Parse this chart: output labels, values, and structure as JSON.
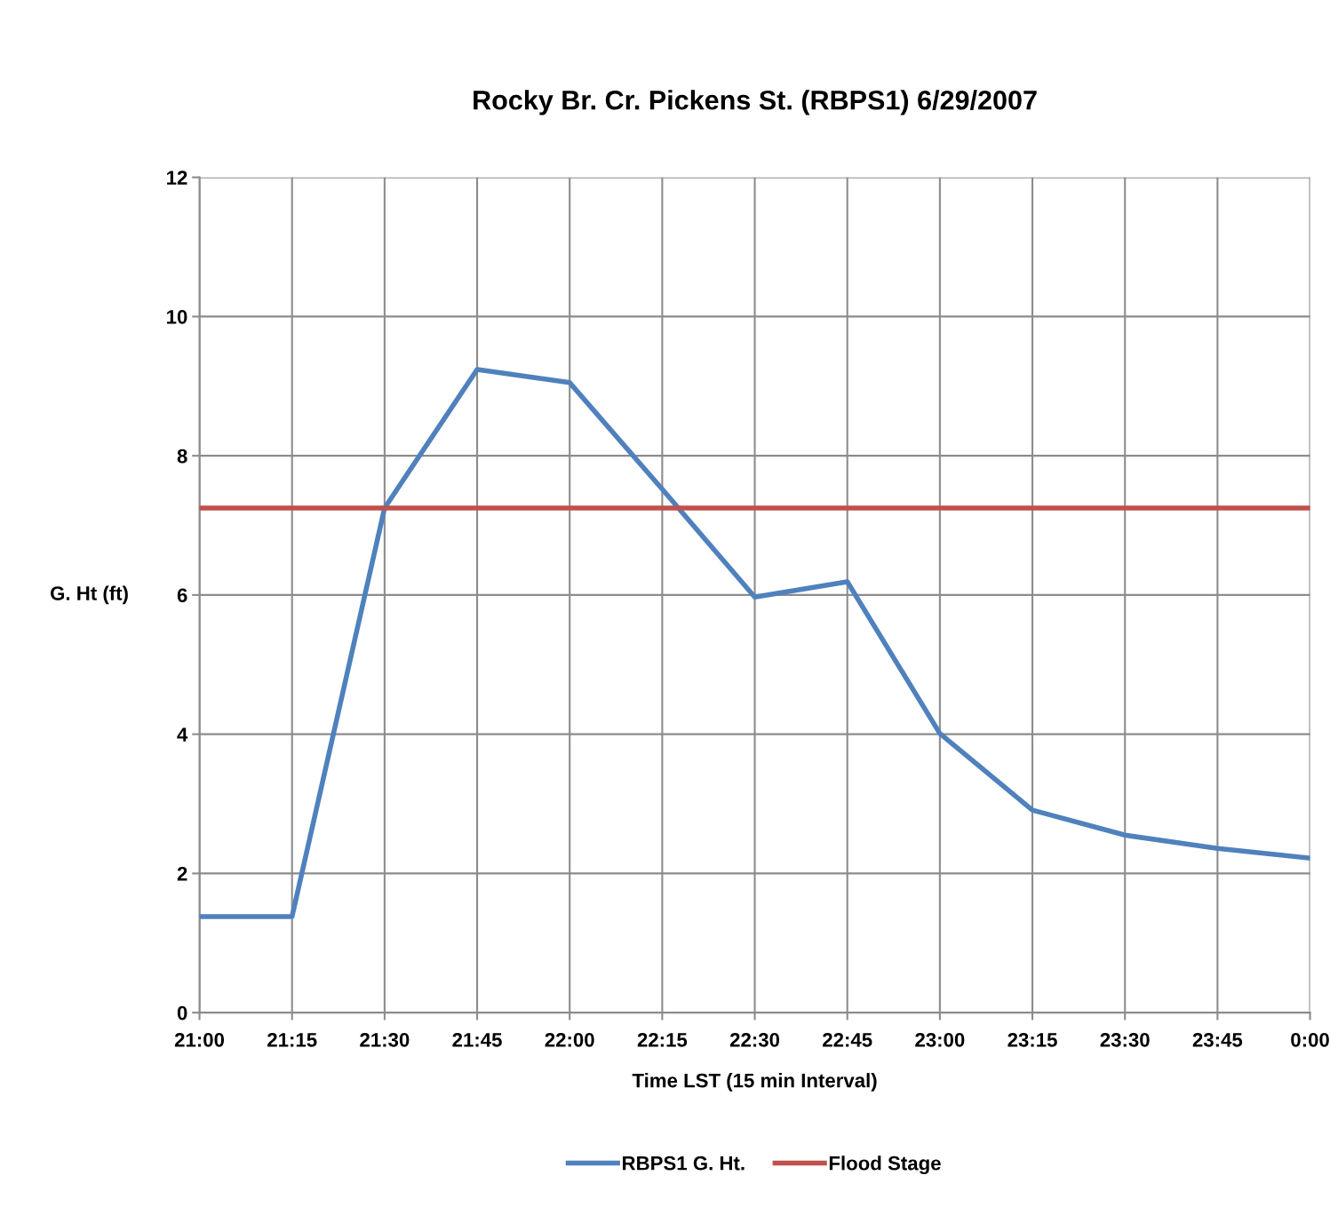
{
  "chart_data": {
    "type": "line",
    "title": "Rocky Br. Cr. Pickens St. (RBPS1) 6/29/2007",
    "xlabel": "Time LST (15 min Interval)",
    "ylabel": "G. Ht (ft)",
    "categories": [
      "21:00",
      "21:15",
      "21:30",
      "21:45",
      "22:00",
      "22:15",
      "22:30",
      "22:45",
      "23:00",
      "23:15",
      "23:30",
      "23:45",
      "0:00"
    ],
    "series": [
      {
        "name": "RBPS1 G. Ht.",
        "color": "#4f81bd",
        "values": [
          1.38,
          1.38,
          7.25,
          9.24,
          9.05,
          7.52,
          5.97,
          6.19,
          4.01,
          2.91,
          2.55,
          2.36,
          2.22
        ]
      },
      {
        "name": "Flood Stage",
        "color": "#c0504d",
        "values": [
          7.25,
          7.25,
          7.25,
          7.25,
          7.25,
          7.25,
          7.25,
          7.25,
          7.25,
          7.25,
          7.25,
          7.25,
          7.25
        ]
      }
    ],
    "ylim": [
      0,
      12
    ],
    "yticks": [
      0,
      2,
      4,
      6,
      8,
      10,
      12
    ],
    "grid": true,
    "legend": "bottom",
    "marker": "none",
    "line_style": "solid"
  }
}
